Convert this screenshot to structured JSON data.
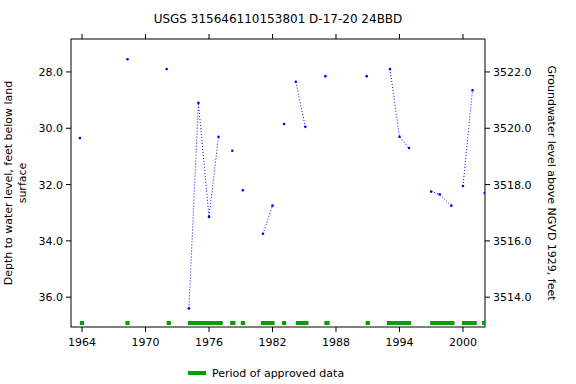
{
  "chart_data": {
    "type": "line",
    "title": "USGS 315646110153801 D-17-20 24BBD",
    "y_label": [
      "Depth to water level, feet below land",
      "surface"
    ],
    "y2_label": "Groundwater level above NGVD 1929, feet",
    "xlim": [
      1962.96,
      2002.08
    ],
    "xticks": [
      1964,
      1970,
      1976,
      1982,
      1988,
      1994,
      2000
    ],
    "ylim": [
      37.06,
      26.83
    ],
    "yticks": [
      {
        "value": 28,
        "label": "28.0"
      },
      {
        "value": 30,
        "label": "30.0"
      },
      {
        "value": 32,
        "label": "32.0"
      },
      {
        "value": 34,
        "label": "34.0"
      },
      {
        "value": 36,
        "label": "36.0"
      }
    ],
    "y2lim": [
      3512.94,
      3523.17
    ],
    "y2ticks": [
      {
        "value": 3514,
        "label": "3514.0"
      },
      {
        "value": 3516,
        "label": "3516.0"
      },
      {
        "value": 3518,
        "label": "3518.0"
      },
      {
        "value": 3520,
        "label": "3520.0"
      },
      {
        "value": 3522,
        "label": "3522.0"
      }
    ],
    "grid": false,
    "series": [
      {
        "name": "Depth to water level",
        "color": "#0000ff",
        "marker": "point",
        "line_style": "dotted",
        "x": [
          1963.8,
          1966.0,
          1968.3,
          1970.1,
          1972.0,
          1973.0,
          1974.1,
          1975.0,
          1976.0,
          1976.9,
          1977.5,
          1978.2,
          1978.7,
          1979.2,
          1980.1,
          1981.1,
          1982.0,
          1982.5,
          1983.1,
          1983.6,
          1984.2,
          1985.1,
          1986.0,
          1987.0,
          1989.0,
          1990.9,
          1992.0,
          1993.1,
          1994.0,
          1994.9,
          1996.0,
          1997.0,
          1997.8,
          1998.9,
          1999.4,
          2000.0,
          2000.9,
          2001.5,
          2002.05
        ],
        "values": [
          30.35,
          null,
          27.55,
          null,
          27.9,
          null,
          36.4,
          29.1,
          33.15,
          30.3,
          null,
          30.8,
          null,
          32.2,
          null,
          33.75,
          32.75,
          null,
          29.85,
          null,
          28.35,
          29.95,
          null,
          28.15,
          null,
          28.15,
          null,
          27.9,
          30.3,
          30.7,
          null,
          32.25,
          32.35,
          32.75,
          null,
          32.05,
          28.65,
          null,
          32.3
        ]
      }
    ],
    "approved_periods": [
      [
        1963.8,
        1964.2
      ],
      [
        1968.1,
        1968.5
      ],
      [
        1972.0,
        1972.4
      ],
      [
        1974.0,
        1977.3
      ],
      [
        1978.0,
        1978.5
      ],
      [
        1979.0,
        1979.4
      ],
      [
        1980.9,
        1982.2
      ],
      [
        1982.9,
        1983.3
      ],
      [
        1984.2,
        1985.4
      ],
      [
        1986.9,
        1987.4
      ],
      [
        1990.8,
        1991.2
      ],
      [
        1992.8,
        1995.1
      ],
      [
        1996.9,
        1999.2
      ],
      [
        1999.9,
        2001.3
      ],
      [
        2001.8,
        2002.08
      ]
    ],
    "approved_label": "Period of approved data",
    "approved_color": "#00a000"
  }
}
